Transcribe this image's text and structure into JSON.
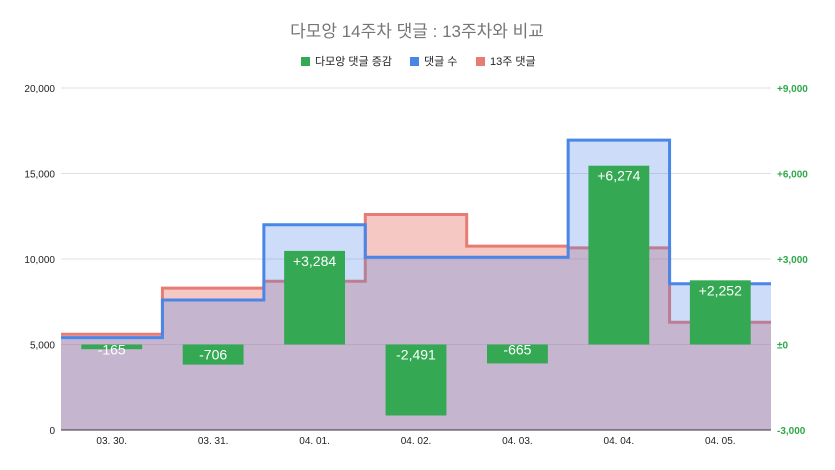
{
  "chart_data": {
    "type": "bar",
    "title": "다모앙 14주차 댓글 : 13주차와 비교",
    "categories": [
      "03. 30.",
      "03. 31.",
      "04. 01.",
      "04. 02.",
      "04. 03.",
      "04. 04.",
      "04. 05."
    ],
    "series": [
      {
        "name": "다모앙 댓글 증감",
        "type": "bar",
        "axis": "right",
        "color": "#34a853",
        "values": [
          -165,
          -706,
          3284,
          -2491,
          -665,
          6274,
          2252
        ],
        "labels": [
          "-165",
          "-706",
          "+3,284",
          "-2,491",
          "-665",
          "+6,274",
          "+2,252"
        ]
      },
      {
        "name": "댓글 수",
        "type": "stepped-area",
        "axis": "left",
        "color": "#4a86e8",
        "values": [
          5400,
          7600,
          12000,
          10100,
          10100,
          16950,
          8550
        ]
      },
      {
        "name": "13주 댓글",
        "type": "stepped-area",
        "axis": "left",
        "color": "#e67c73",
        "values": [
          5600,
          8300,
          8700,
          12600,
          10750,
          10650,
          6300
        ]
      }
    ],
    "left_axis": {
      "ylim": [
        0,
        20000
      ],
      "ticks": [
        "0",
        "5,000",
        "10,000",
        "15,000",
        "20,000"
      ]
    },
    "right_axis": {
      "ylim": [
        -3000,
        9000
      ],
      "ticks": [
        "-3,000",
        "±0",
        "+3,000",
        "+6,000",
        "+9,000"
      ]
    },
    "legend_position": "top-center",
    "grid": true
  }
}
